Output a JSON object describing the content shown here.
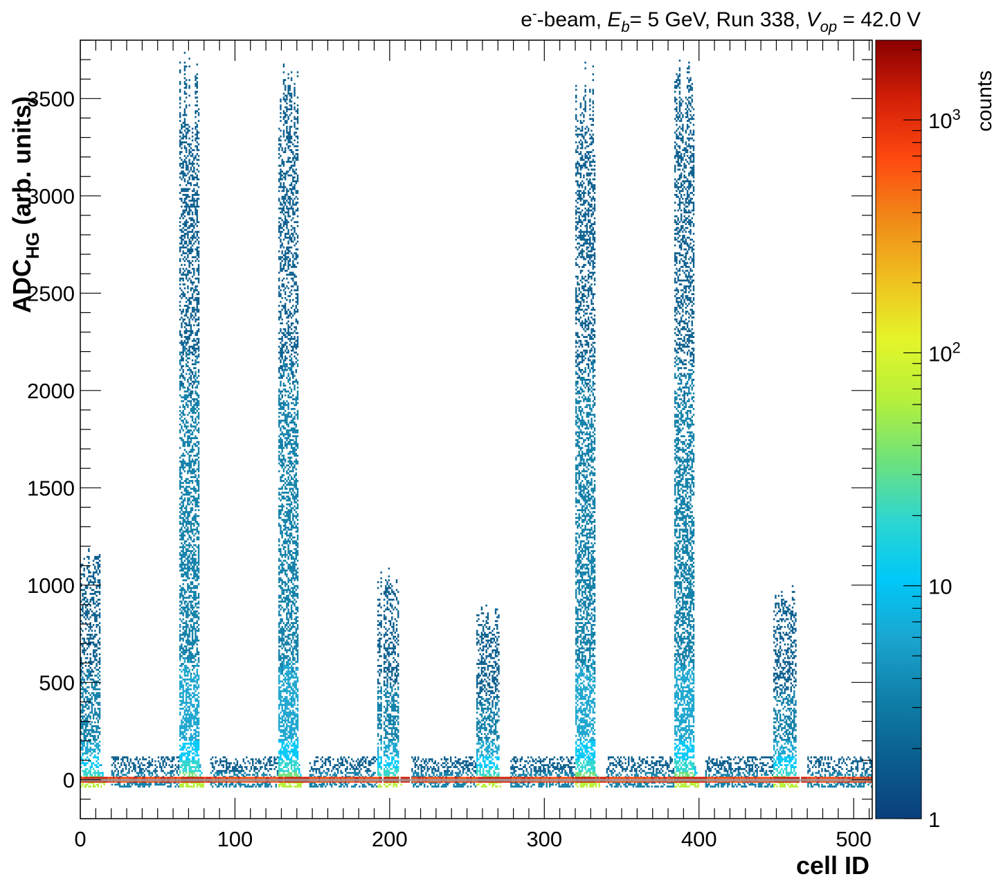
{
  "chart_data": {
    "type": "heatmap",
    "title_parts": {
      "beam": "e",
      "beam_sup": "-",
      "beam_rest": "-beam, ",
      "energy_sym": "E",
      "energy_sub": "b",
      "energy_rest": "= 5 GeV, Run 338, ",
      "volt_sym": "V",
      "volt_sub": "op",
      "volt_rest": " = 42.0 V"
    },
    "xlabel": "cell ID",
    "ylabel": "ADC",
    "ylabel_sub": "HG",
    "ylabel_rest": " (arb. units)",
    "zlabel": "counts",
    "xlim": [
      0,
      512
    ],
    "ylim": [
      -200,
      3800
    ],
    "zlim": [
      1,
      2200
    ],
    "zscale": "log",
    "grid": false,
    "x_ticks": [
      0,
      100,
      200,
      300,
      400,
      500
    ],
    "x_tick_labels": [
      "0",
      "100",
      "200",
      "300",
      "400",
      "500"
    ],
    "y_ticks": [
      0,
      500,
      1000,
      1500,
      2000,
      2500,
      3000,
      3500
    ],
    "y_tick_labels": [
      "0",
      "500",
      "1000",
      "1500",
      "2000",
      "2500",
      "3000",
      "3500"
    ],
    "z_ticks": [
      1,
      10,
      100,
      1000
    ],
    "z_tick_labels": [
      {
        "base": "1",
        "exp": ""
      },
      {
        "base": "10",
        "exp": ""
      },
      {
        "base": "10",
        "exp": "2"
      },
      {
        "base": "10",
        "exp": "3"
      }
    ],
    "colormap": [
      "#0a3f7c",
      "#0a5e8e",
      "#0f7fa8",
      "#1aa5cf",
      "#00c8f8",
      "#2fd6cf",
      "#6fe27a",
      "#b6f03a",
      "#e4f52a",
      "#f0c020",
      "#f08a18",
      "#ff4a10",
      "#d42008",
      "#8a0000"
    ],
    "pedestal_color": "#9aa4a8",
    "bands": [
      {
        "x_range": [
          64,
          76
        ],
        "y_top": 3800,
        "peak_cell": 68,
        "strength": "high"
      },
      {
        "x_range": [
          128,
          140
        ],
        "y_top": 3800,
        "peak_cell": 132,
        "strength": "high"
      },
      {
        "x_range": [
          320,
          332
        ],
        "y_top": 3800,
        "peak_cell": 324,
        "strength": "high"
      },
      {
        "x_range": [
          384,
          396
        ],
        "y_top": 3800,
        "peak_cell": 388,
        "strength": "high"
      },
      {
        "x_range": [
          0,
          12
        ],
        "y_top": 1200,
        "peak_cell": 4,
        "strength": "medium"
      },
      {
        "x_range": [
          192,
          206
        ],
        "y_top": 1100,
        "peak_cell": 198,
        "strength": "medium"
      },
      {
        "x_range": [
          256,
          270
        ],
        "y_top": 900,
        "peak_cell": 262,
        "strength": "medium"
      },
      {
        "x_range": [
          448,
          462
        ],
        "y_top": 1000,
        "peak_cell": 454,
        "strength": "medium"
      }
    ],
    "gaps_cells": [
      195,
      206,
      213,
      465
    ]
  }
}
